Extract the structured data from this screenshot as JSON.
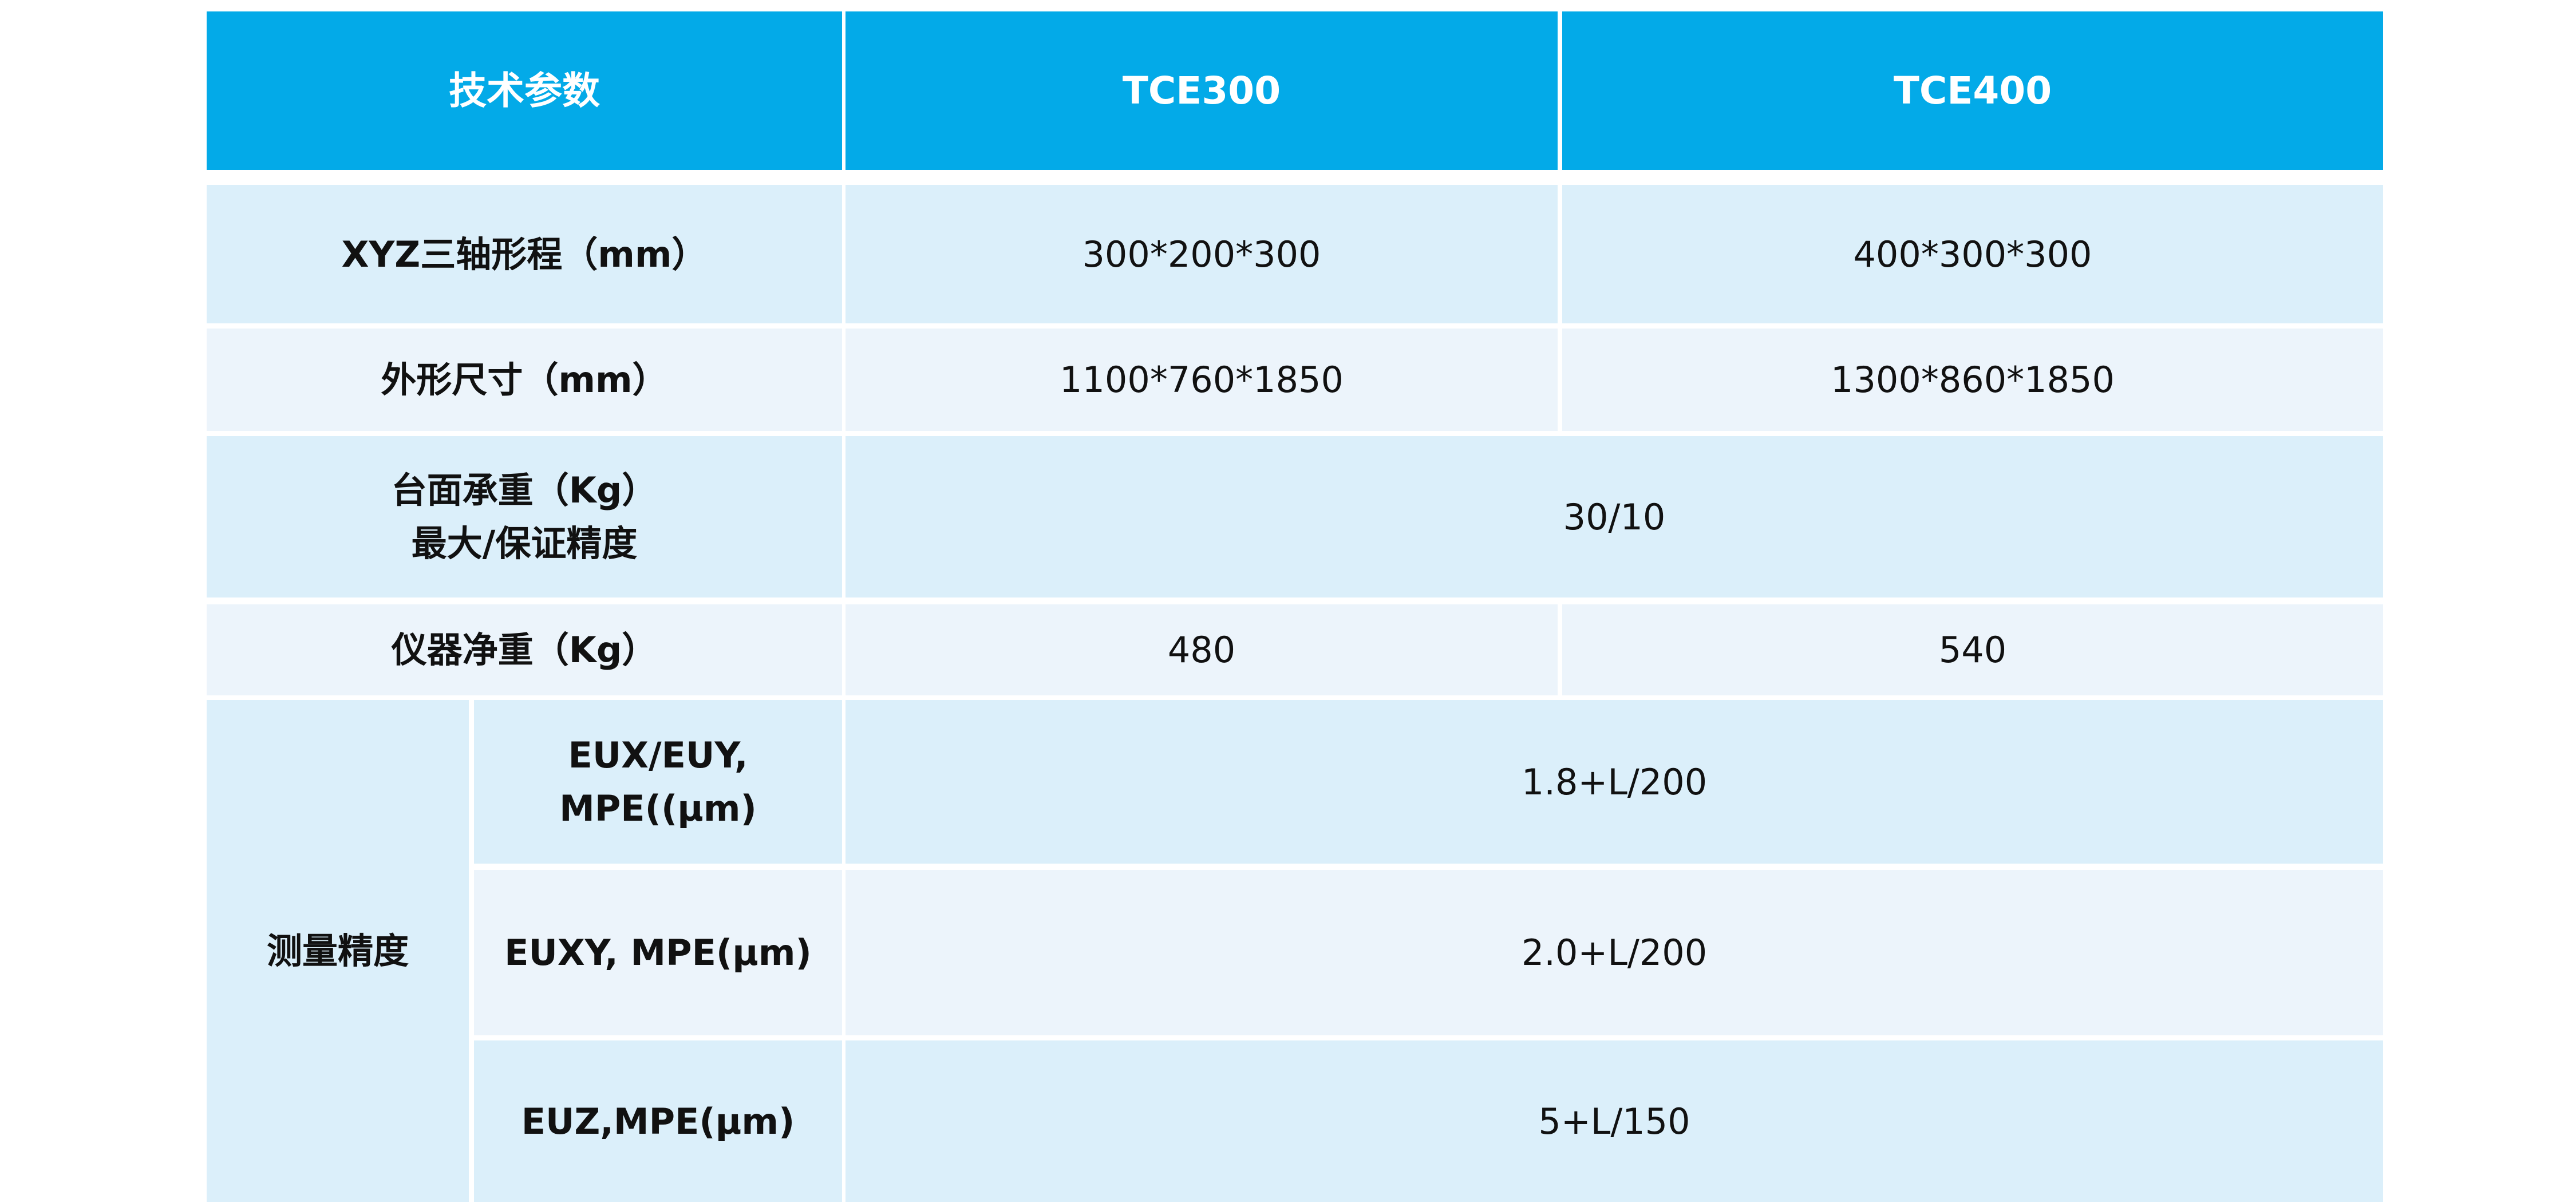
{
  "table": {
    "header": [
      "技术参数",
      "TCE300",
      "TCE400"
    ],
    "rows": [
      {
        "label": "XYZ三轴形程（mm）",
        "values": [
          "300*200*300",
          "400*300*300"
        ]
      },
      {
        "label": "外形尺寸（mm）",
        "values": [
          "1100*760*1850",
          "1300*860*1850"
        ]
      },
      {
        "label": [
          "台面承重（Kg）",
          "最大/保证精度"
        ],
        "value": "30/10"
      },
      {
        "label": "仪器净重（Kg）",
        "values": [
          "480",
          "540"
        ]
      }
    ],
    "group": {
      "label": "测量精度",
      "rows": [
        {
          "label": [
            "EUX/EUY,",
            "MPE((μm)"
          ],
          "value": "1.8+L/200"
        },
        {
          "label": "EUXY, MPE(μm)",
          "value": "2.0+L/200"
        },
        {
          "label": "EUZ,MPE(μm)",
          "value": "5+L/150"
        }
      ]
    }
  }
}
